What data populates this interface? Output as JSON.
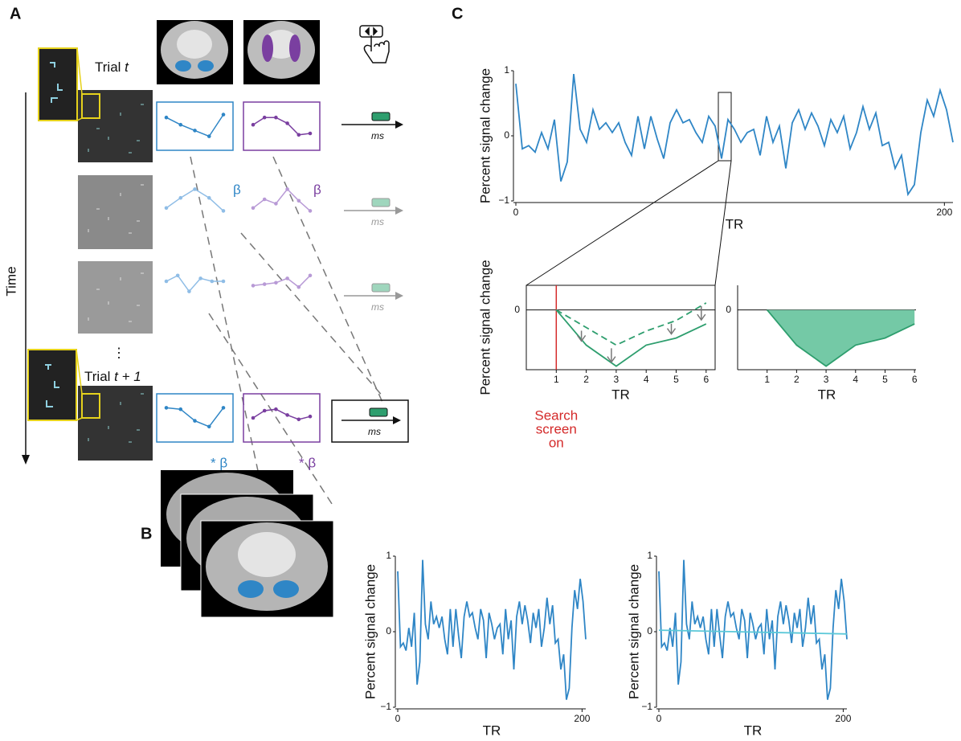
{
  "panels": {
    "a": "A",
    "b": "B",
    "c": "C"
  },
  "panel_a": {
    "trial": "Trial",
    "trial_var": "t",
    "trial_next": "Trial",
    "trial_next_var": "t + 1",
    "time": "Time",
    "ellipsis": "⋮",
    "beta": [
      "β",
      "β"
    ],
    "weighted_beta": [
      "* β",
      "* β"
    ],
    "ms": [
      "ms",
      "ms",
      "ms",
      "ms"
    ],
    "profiles": [
      {
        "color": "#2f86c6",
        "boxed": true,
        "values": [
          0.8,
          0.55,
          0.35,
          0.15,
          0.9
        ]
      },
      {
        "color": "#7a3fa0",
        "boxed": true,
        "values": [
          0.55,
          0.8,
          0.8,
          0.6,
          0.2,
          0.25
        ]
      },
      {
        "color": "#8fbde6",
        "boxed": false,
        "values": [
          0.2,
          0.55,
          0.85,
          0.55,
          0.1
        ]
      },
      {
        "color": "#b89ad6",
        "boxed": false,
        "values": [
          0.2,
          0.5,
          0.35,
          0.85,
          0.45,
          0.1
        ]
      },
      {
        "color": "#8fbde6",
        "boxed": false,
        "values": [
          0.5,
          0.7,
          0.15,
          0.6,
          0.5,
          0.5
        ]
      },
      {
        "color": "#b89ad6",
        "boxed": false,
        "values": [
          0.35,
          0.4,
          0.45,
          0.6,
          0.3,
          0.7
        ]
      },
      {
        "color": "#2f86c6",
        "boxed": true,
        "values": [
          0.85,
          0.8,
          0.4,
          0.2,
          0.85
        ]
      },
      {
        "color": "#7a3fa0",
        "boxed": true,
        "values": [
          0.5,
          0.75,
          0.8,
          0.6,
          0.45,
          0.55
        ]
      }
    ]
  },
  "chart_data": [
    {
      "type": "line",
      "y_label": "Percent signal change",
      "x_label": "TR",
      "x": [
        0,
        3,
        6,
        9,
        12,
        15,
        18,
        21,
        24,
        27,
        30,
        33,
        36,
        39,
        42,
        45,
        48,
        51,
        54,
        57,
        60,
        63,
        66,
        69,
        72,
        75,
        78,
        81,
        84,
        87,
        90,
        93,
        96,
        99,
        102,
        105,
        108,
        111,
        114,
        117,
        120,
        123,
        126,
        129,
        132,
        135,
        138,
        141,
        144,
        147,
        150,
        153,
        156,
        159,
        162,
        165,
        168,
        171,
        174,
        177,
        180,
        183,
        186,
        189,
        192,
        195,
        198,
        201,
        204
      ],
      "series": [
        {
          "color": "#2f86c6",
          "values": [
            0.8,
            -0.2,
            -0.15,
            -0.25,
            0.05,
            -0.2,
            0.25,
            -0.7,
            -0.4,
            0.95,
            0.1,
            -0.1,
            0.4,
            0.1,
            0.2,
            0.05,
            0.2,
            -0.1,
            -0.3,
            0.3,
            -0.2,
            0.3,
            -0.05,
            -0.35,
            0.2,
            0.4,
            0.2,
            0.25,
            0.05,
            -0.1,
            0.3,
            0.15,
            -0.35,
            0.25,
            0.1,
            -0.1,
            0.05,
            0.1,
            -0.3,
            0.3,
            -0.1,
            0.15,
            -0.5,
            0.2,
            0.4,
            0.1,
            0.35,
            0.15,
            -0.15,
            0.25,
            0.05,
            0.3,
            -0.2,
            0.05,
            0.45,
            0.1,
            0.35,
            -0.15,
            -0.1,
            -0.5,
            -0.3,
            -0.9,
            -0.75,
            0.05,
            0.55,
            0.3,
            0.7,
            0.4,
            -0.1
          ]
        }
      ],
      "xlim": [
        0,
        204
      ],
      "ylim": [
        -1,
        1
      ],
      "xticks": [
        0,
        200
      ],
      "yticks": [
        1,
        0,
        {
          "value": -1,
          "label": "−1"
        }
      ]
    },
    {
      "type": "line",
      "y_label": "Percent signal change",
      "x_label": "TR",
      "annotation": [
        "Search",
        "screen",
        "on"
      ],
      "x": [
        1,
        2,
        3,
        4,
        5,
        6
      ],
      "series": [
        {
          "color": "#2e9e6e",
          "dash": true,
          "values": [
            0,
            -0.25,
            -0.5,
            -0.3,
            -0.15,
            0.1
          ]
        },
        {
          "color": "#2e9e6e",
          "values": [
            0,
            -0.5,
            -0.8,
            -0.5,
            -0.4,
            -0.2
          ]
        }
      ],
      "xlim": [
        0,
        6.3
      ],
      "ylim": [
        -0.85,
        0.35
      ],
      "xticks": [
        1,
        2,
        3,
        4,
        5,
        6
      ],
      "yticks": [
        0
      ]
    },
    {
      "type": "area",
      "x_label": "TR",
      "x": [
        1,
        2,
        3,
        4,
        5,
        6
      ],
      "series": [
        {
          "color": "#2e9e6e",
          "fill": "#74c9a6",
          "values": [
            0,
            -0.5,
            -0.8,
            -0.5,
            -0.4,
            -0.2
          ]
        }
      ],
      "xlim": [
        0,
        6.05
      ],
      "ylim": [
        -0.85,
        0.35
      ],
      "xticks": [
        1,
        2,
        3,
        4,
        5,
        6
      ],
      "yticks": [
        0
      ]
    },
    {
      "type": "line",
      "y_label": "Percent signal change",
      "x_label": "TR",
      "x": [
        0,
        3,
        6,
        9,
        12,
        15,
        18,
        21,
        24,
        27,
        30,
        33,
        36,
        39,
        42,
        45,
        48,
        51,
        54,
        57,
        60,
        63,
        66,
        69,
        72,
        75,
        78,
        81,
        84,
        87,
        90,
        93,
        96,
        99,
        102,
        105,
        108,
        111,
        114,
        117,
        120,
        123,
        126,
        129,
        132,
        135,
        138,
        141,
        144,
        147,
        150,
        153,
        156,
        159,
        162,
        165,
        168,
        171,
        174,
        177,
        180,
        183,
        186,
        189,
        192,
        195,
        198,
        201,
        204
      ],
      "series": [
        {
          "color": "#2f86c6",
          "values": [
            0.8,
            -0.2,
            -0.15,
            -0.25,
            0.05,
            -0.2,
            0.25,
            -0.7,
            -0.4,
            0.95,
            0.1,
            -0.1,
            0.4,
            0.1,
            0.2,
            0.05,
            0.2,
            -0.1,
            -0.3,
            0.3,
            -0.2,
            0.3,
            -0.05,
            -0.35,
            0.2,
            0.4,
            0.2,
            0.25,
            0.05,
            -0.1,
            0.3,
            0.15,
            -0.35,
            0.25,
            0.1,
            -0.1,
            0.05,
            0.1,
            -0.3,
            0.3,
            -0.1,
            0.15,
            -0.5,
            0.2,
            0.4,
            0.1,
            0.35,
            0.15,
            -0.15,
            0.25,
            0.05,
            0.3,
            -0.2,
            0.05,
            0.45,
            0.1,
            0.35,
            -0.15,
            -0.1,
            -0.5,
            -0.3,
            -0.9,
            -0.75,
            0.05,
            0.55,
            0.3,
            0.7,
            0.4,
            -0.1
          ]
        }
      ],
      "xlim": [
        0,
        204
      ],
      "ylim": [
        -1,
        1
      ],
      "xticks": [
        0,
        200
      ],
      "yticks": [
        1,
        0,
        {
          "value": -1,
          "label": "−1"
        }
      ]
    },
    {
      "type": "line",
      "y_label": "Percent signal change",
      "x_label": "TR",
      "x": [
        0,
        3,
        6,
        9,
        12,
        15,
        18,
        21,
        24,
        27,
        30,
        33,
        36,
        39,
        42,
        45,
        48,
        51,
        54,
        57,
        60,
        63,
        66,
        69,
        72,
        75,
        78,
        81,
        84,
        87,
        90,
        93,
        96,
        99,
        102,
        105,
        108,
        111,
        114,
        117,
        120,
        123,
        126,
        129,
        132,
        135,
        138,
        141,
        144,
        147,
        150,
        153,
        156,
        159,
        162,
        165,
        168,
        171,
        174,
        177,
        180,
        183,
        186,
        189,
        192,
        195,
        198,
        201,
        204
      ],
      "series": [
        {
          "color": "#2f86c6",
          "values": [
            0.8,
            -0.2,
            -0.15,
            -0.25,
            0.05,
            -0.2,
            0.25,
            -0.7,
            -0.4,
            0.95,
            0.1,
            -0.1,
            0.4,
            0.1,
            0.2,
            0.05,
            0.2,
            -0.1,
            -0.3,
            0.3,
            -0.2,
            0.3,
            -0.05,
            -0.35,
            0.2,
            0.4,
            0.2,
            0.25,
            0.05,
            -0.1,
            0.3,
            0.15,
            -0.35,
            0.25,
            0.1,
            -0.1,
            0.05,
            0.1,
            -0.3,
            0.3,
            -0.1,
            0.15,
            -0.5,
            0.2,
            0.4,
            0.1,
            0.35,
            0.15,
            -0.15,
            0.25,
            0.05,
            0.3,
            -0.2,
            0.05,
            0.45,
            0.1,
            0.35,
            -0.15,
            -0.1,
            -0.5,
            -0.3,
            -0.9,
            -0.75,
            0.05,
            0.55,
            0.3,
            0.7,
            0.4,
            -0.1
          ]
        },
        {
          "color": "#5bc8d8",
          "x": [
            0,
            204
          ],
          "values": [
            0.02,
            -0.03
          ]
        }
      ],
      "xlim": [
        0,
        204
      ],
      "ylim": [
        -1,
        1
      ],
      "xticks": [
        0,
        200
      ],
      "yticks": [
        1,
        0,
        {
          "value": -1,
          "label": "−1"
        }
      ]
    }
  ]
}
